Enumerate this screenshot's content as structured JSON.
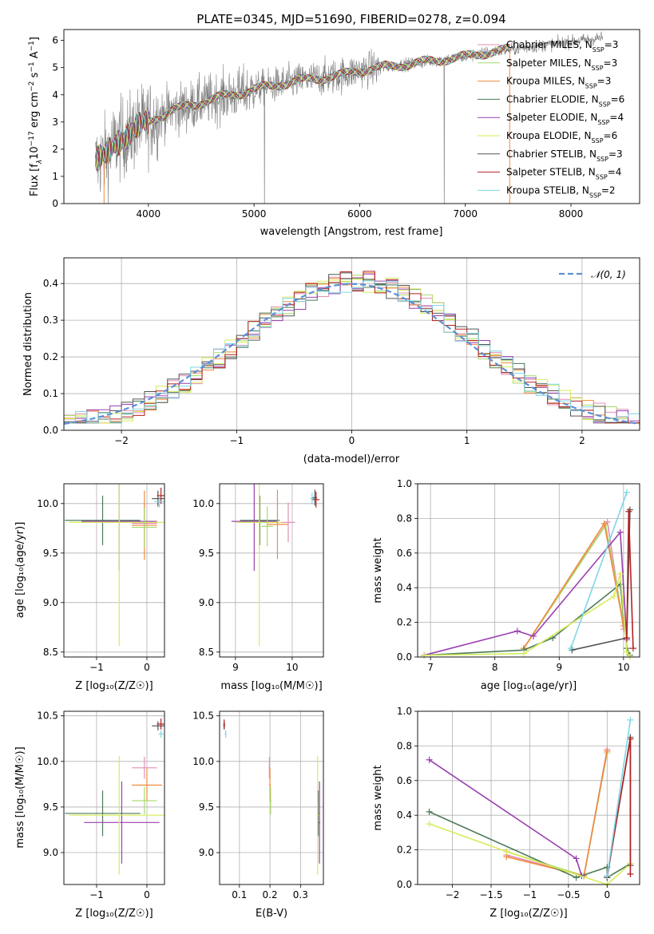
{
  "figure_title": "PLATE=0345, MJD=51690, FIBERID=0278, z=0.094",
  "colors": {
    "chabrier_miles": "#e58fb7",
    "salpeter_miles": "#a6d96a",
    "kroupa_miles": "#f08a3e",
    "chabrier_elodie": "#4d7a5a",
    "salpeter_elodie": "#9a3fb0",
    "kroupa_elodie": "#d7ec5a",
    "chabrier_stelib": "#555555",
    "salpeter_stelib": "#b22222",
    "kroupa_stelib": "#7fd6e6",
    "data": "#808080",
    "normal": "#5b8fd6"
  },
  "chart_data": [
    {
      "id": "spectrum",
      "type": "line",
      "title": "PLATE=0345, MJD=51690, FIBERID=0278, z=0.094",
      "xlabel": "wavelength [Angstrom, rest frame]",
      "ylabel_parts": [
        "Flux [f",
        "λ",
        "10",
        "−17",
        " erg cm",
        "−2",
        " s",
        "−1",
        " A",
        "−1",
        "]"
      ],
      "xlim": [
        3200,
        8650
      ],
      "ylim": [
        0,
        6.4
      ],
      "xticks": [
        4000,
        5000,
        6000,
        7000,
        8000
      ],
      "yticks": [
        0,
        1,
        2,
        3,
        4,
        5,
        6
      ],
      "legend_position": "upper-right",
      "legend": [
        {
          "label": "Chabrier MILES, N",
          "sub": "SSP",
          "n": "=3",
          "key": "chabrier_miles"
        },
        {
          "label": "Salpeter MILES, N",
          "sub": "SSP",
          "n": "=3",
          "key": "salpeter_miles"
        },
        {
          "label": "Kroupa MILES, N",
          "sub": "SSP",
          "n": "=3",
          "key": "kroupa_miles"
        },
        {
          "label": "Chabrier ELODIE, N",
          "sub": "SSP",
          "n": "=6",
          "key": "chabrier_elodie"
        },
        {
          "label": "Salpeter ELODIE, N",
          "sub": "SSP",
          "n": "=4",
          "key": "salpeter_elodie"
        },
        {
          "label": "Kroupa ELODIE, N",
          "sub": "SSP",
          "n": "=6",
          "key": "kroupa_elodie"
        },
        {
          "label": "Chabrier STELIB, N",
          "sub": "SSP",
          "n": "=3",
          "key": "chabrier_stelib"
        },
        {
          "label": "Salpeter STELIB, N",
          "sub": "SSP",
          "n": "=4",
          "key": "salpeter_stelib"
        },
        {
          "label": "Kroupa STELIB, N",
          "sub": "SSP",
          "n": "=2",
          "key": "kroupa_stelib"
        }
      ],
      "continuum": {
        "x": [
          3500,
          3600,
          3700,
          3800,
          3900,
          4000,
          4100,
          4200,
          4400,
          4600,
          4800,
          5000,
          5200,
          5400,
          5600,
          5800,
          6000,
          6200,
          6400,
          6600,
          6800,
          7000,
          7200,
          7400,
          7600,
          7800,
          8000,
          8200,
          8300
        ],
        "y": [
          1.5,
          1.8,
          2.3,
          2.5,
          2.8,
          3.0,
          3.2,
          3.4,
          3.6,
          3.85,
          4.0,
          4.2,
          4.35,
          4.5,
          4.6,
          4.7,
          4.9,
          5.0,
          5.1,
          5.2,
          5.3,
          5.4,
          5.55,
          5.65,
          5.75,
          5.85,
          5.95,
          6.05,
          6.1
        ]
      },
      "data_range": [
        3500,
        8300
      ],
      "model_range": [
        3500,
        7420
      ]
    },
    {
      "id": "residuals",
      "type": "histogram",
      "xlabel": "(data-model)/error",
      "ylabel": "Normed distribution",
      "xlim": [
        -2.5,
        2.5
      ],
      "ylim": [
        0,
        0.47
      ],
      "xticks": [
        -2,
        -1,
        0,
        1,
        2
      ],
      "yticks": [
        0.0,
        0.1,
        0.2,
        0.3,
        0.4
      ],
      "bin_width": 0.1,
      "bin_start": -2.5,
      "legend": "𝒩(0, 1)",
      "legend_position": "upper-right"
    },
    {
      "id": "age_vs_z",
      "type": "errorbar",
      "xlabel": "Z [log",
      "xlabel_full": "Z [log₁₀(Z/Z☉)]",
      "ylabel": "age  [log₁₀(age/yr)]",
      "xlim": [
        -1.65,
        0.35
      ],
      "ylim": [
        8.45,
        10.2
      ],
      "xticks": [
        -1,
        0
      ],
      "yticks": [
        8.5,
        9.0,
        9.5,
        10.0
      ],
      "points": [
        {
          "key": "chabrier_elodie",
          "x": -0.88,
          "xerr": 0.75,
          "y": 9.83,
          "yerr": 0.25
        },
        {
          "key": "salpeter_elodie",
          "x": -0.55,
          "xerr": 0.75,
          "y": 9.82,
          "yerr": 0.5
        },
        {
          "key": "kroupa_elodie",
          "x": -0.55,
          "xerr": 1.0,
          "y": 9.81,
          "yerr": 1.25
        },
        {
          "key": "chabrier_miles",
          "x": -0.05,
          "xerr": 0.25,
          "y": 9.8,
          "yerr": 0.2
        },
        {
          "key": "kroupa_miles",
          "x": -0.05,
          "xerr": 0.25,
          "y": 9.78,
          "yerr": 0.35
        },
        {
          "key": "salpeter_miles",
          "x": -0.05,
          "xerr": 0.25,
          "y": 9.76,
          "yerr": 0.2
        },
        {
          "key": "chabrier_stelib",
          "x": 0.22,
          "xerr": 0.12,
          "y": 10.05,
          "yerr": 0.08
        },
        {
          "key": "salpeter_stelib",
          "x": 0.28,
          "xerr": 0.08,
          "y": 10.08,
          "yerr": 0.08
        },
        {
          "key": "kroupa_stelib",
          "x": 0.25,
          "xerr": 0.1,
          "y": 10.02,
          "yerr": 0.06
        }
      ]
    },
    {
      "id": "age_vs_mass",
      "type": "errorbar",
      "xlabel_full": "mass [log₁₀(M/M☉)]",
      "xlim": [
        8.72,
        10.55
      ],
      "ylim": [
        8.45,
        10.2
      ],
      "xticks": [
        9,
        10
      ],
      "yticks": [
        8.5,
        9.0,
        9.5,
        10.0
      ],
      "points": [
        {
          "key": "chabrier_elodie",
          "x": 9.43,
          "xerr": 0.35,
          "y": 9.83,
          "yerr": 0.25
        },
        {
          "key": "salpeter_elodie",
          "x": 9.33,
          "xerr": 0.4,
          "y": 9.82,
          "yerr": 0.5
        },
        {
          "key": "kroupa_elodie",
          "x": 9.42,
          "xerr": 0.4,
          "y": 9.81,
          "yerr": 1.25
        },
        {
          "key": "chabrier_miles",
          "x": 9.93,
          "xerr": 0.12,
          "y": 9.81,
          "yerr": 0.2
        },
        {
          "key": "kroupa_miles",
          "x": 9.74,
          "xerr": 0.18,
          "y": 9.79,
          "yerr": 0.35
        },
        {
          "key": "salpeter_miles",
          "x": 9.56,
          "xerr": 0.1,
          "y": 9.77,
          "yerr": 0.2
        },
        {
          "key": "chabrier_stelib",
          "x": 10.4,
          "xerr": 0.04,
          "y": 10.06,
          "yerr": 0.08
        },
        {
          "key": "salpeter_stelib",
          "x": 10.42,
          "xerr": 0.06,
          "y": 10.04,
          "yerr": 0.08
        },
        {
          "key": "kroupa_stelib",
          "x": 10.35,
          "xerr": 0.04,
          "y": 10.05,
          "yerr": 0.06
        }
      ]
    },
    {
      "id": "weight_vs_age",
      "type": "line",
      "xlabel_full": "age  [log₁₀(age/yr)]",
      "ylabel": "mass weight",
      "xlim": [
        6.8,
        10.25
      ],
      "ylim": [
        0,
        1.0
      ],
      "xticks": [
        7,
        8,
        9,
        10
      ],
      "yticks": [
        0.0,
        0.2,
        0.4,
        0.6,
        0.8,
        1.0
      ],
      "series": [
        {
          "key": "chabrier_miles",
          "x": [
            8.45,
            9.75,
            10.0
          ],
          "y": [
            0.05,
            0.78,
            0.16
          ]
        },
        {
          "key": "salpeter_miles",
          "x": [
            8.45,
            9.72,
            10.0
          ],
          "y": [
            0.05,
            0.76,
            0.2
          ]
        },
        {
          "key": "kroupa_miles",
          "x": [
            8.45,
            9.7,
            10.0
          ],
          "y": [
            0.05,
            0.77,
            0.18
          ]
        },
        {
          "key": "chabrier_elodie",
          "x": [
            6.9,
            8.45,
            8.9,
            9.95,
            10.05,
            10.1
          ],
          "y": [
            0.01,
            0.04,
            0.11,
            0.42,
            0.05,
            0.01
          ]
        },
        {
          "key": "salpeter_elodie",
          "x": [
            6.9,
            8.35,
            8.6,
            9.95,
            10.05
          ],
          "y": [
            0.01,
            0.15,
            0.12,
            0.72,
            0.1
          ]
        },
        {
          "key": "kroupa_elodie",
          "x": [
            6.9,
            8.45,
            9.85,
            9.95,
            10.05,
            10.1
          ],
          "y": [
            0.01,
            0.02,
            0.35,
            0.48,
            0.03,
            0.0
          ]
        },
        {
          "key": "chabrier_stelib",
          "x": [
            9.2,
            10.05,
            10.1
          ],
          "y": [
            0.04,
            0.11,
            0.85
          ]
        },
        {
          "key": "salpeter_stelib",
          "x": [
            10.05,
            10.08,
            10.15
          ],
          "y": [
            0.11,
            0.84,
            0.05
          ]
        },
        {
          "key": "kroupa_stelib",
          "x": [
            9.18,
            10.05
          ],
          "y": [
            0.05,
            0.95
          ]
        }
      ]
    },
    {
      "id": "mass_vs_z",
      "type": "errorbar",
      "xlabel_full": "Z [log₁₀(Z/Z☉)]",
      "ylabel": "mass [log₁₀(M/M☉)]",
      "xlim": [
        -1.65,
        0.35
      ],
      "ylim": [
        8.65,
        10.55
      ],
      "xticks": [
        -1,
        0
      ],
      "yticks": [
        9.0,
        9.5,
        10.0,
        10.5
      ],
      "points": [
        {
          "key": "chabrier_elodie",
          "x": -0.88,
          "xerr": 0.75,
          "y": 9.43,
          "yerr": 0.25
        },
        {
          "key": "salpeter_elodie",
          "x": -0.5,
          "xerr": 0.75,
          "y": 9.33,
          "yerr": 0.45
        },
        {
          "key": "kroupa_elodie",
          "x": -0.55,
          "xerr": 1.0,
          "y": 9.41,
          "yerr": 0.65
        },
        {
          "key": "chabrier_miles",
          "x": -0.05,
          "xerr": 0.25,
          "y": 9.93,
          "yerr": 0.12
        },
        {
          "key": "kroupa_miles",
          "x": 0.0,
          "xerr": 0.3,
          "y": 9.74,
          "yerr": 0.18
        },
        {
          "key": "salpeter_miles",
          "x": -0.05,
          "xerr": 0.25,
          "y": 9.57,
          "yerr": 0.15
        },
        {
          "key": "chabrier_stelib",
          "x": 0.22,
          "xerr": 0.12,
          "y": 10.39,
          "yerr": 0.05
        },
        {
          "key": "salpeter_stelib",
          "x": 0.28,
          "xerr": 0.08,
          "y": 10.41,
          "yerr": 0.06
        },
        {
          "key": "kroupa_stelib",
          "x": 0.28,
          "xerr": 0.05,
          "y": 10.3,
          "yerr": 0.04
        }
      ]
    },
    {
      "id": "mass_vs_ebv",
      "type": "errorbar",
      "xlabel_full": "E(B-V)",
      "xlim": [
        0.035,
        0.375
      ],
      "ylim": [
        8.65,
        10.55
      ],
      "xticks": [
        0.1,
        0.2,
        0.3
      ],
      "yticks": [
        9.0,
        9.5,
        10.0,
        10.5
      ],
      "points": [
        {
          "key": "chabrier_stelib",
          "x": 0.05,
          "xerr": 0.003,
          "y": 10.39,
          "yerr": 0.04
        },
        {
          "key": "salpeter_stelib",
          "x": 0.05,
          "xerr": 0.003,
          "y": 10.41,
          "yerr": 0.05
        },
        {
          "key": "kroupa_stelib",
          "x": 0.055,
          "xerr": 0.003,
          "y": 10.3,
          "yerr": 0.04
        },
        {
          "key": "chabrier_miles",
          "x": 0.198,
          "xerr": 0.003,
          "y": 9.93,
          "yerr": 0.12
        },
        {
          "key": "kroupa_miles",
          "x": 0.2,
          "xerr": 0.003,
          "y": 9.74,
          "yerr": 0.18
        },
        {
          "key": "salpeter_miles",
          "x": 0.202,
          "xerr": 0.003,
          "y": 9.57,
          "yerr": 0.15
        },
        {
          "key": "chabrier_elodie",
          "x": 0.358,
          "xerr": 0.003,
          "y": 9.43,
          "yerr": 0.25
        },
        {
          "key": "salpeter_elodie",
          "x": 0.362,
          "xerr": 0.003,
          "y": 9.33,
          "yerr": 0.45
        },
        {
          "key": "kroupa_elodie",
          "x": 0.356,
          "xerr": 0.003,
          "y": 9.41,
          "yerr": 0.65
        }
      ]
    },
    {
      "id": "weight_vs_z",
      "type": "line",
      "xlabel_full": "Z [log₁₀(Z/Z☉)]",
      "ylabel": "mass weight",
      "xlim": [
        -2.45,
        0.42
      ],
      "ylim": [
        0,
        1.0
      ],
      "xticks": [
        -2.0,
        -1.5,
        -1.0,
        -0.5,
        0.0
      ],
      "yticks": [
        0.0,
        0.2,
        0.4,
        0.6,
        0.8,
        1.0
      ],
      "series": [
        {
          "key": "chabrier_miles",
          "x": [
            -1.3,
            -0.3,
            0.0
          ],
          "y": [
            0.17,
            0.05,
            0.78
          ]
        },
        {
          "key": "salpeter_miles",
          "x": [
            -1.3,
            -0.3,
            0.0
          ],
          "y": [
            0.19,
            0.05,
            0.76
          ]
        },
        {
          "key": "kroupa_miles",
          "x": [
            -1.3,
            -0.3,
            0.0
          ],
          "y": [
            0.16,
            0.05,
            0.77
          ]
        },
        {
          "key": "chabrier_elodie",
          "x": [
            -2.3,
            -0.4,
            0.0,
            0.0,
            0.3
          ],
          "y": [
            0.42,
            0.04,
            0.1,
            0.04,
            0.12
          ]
        },
        {
          "key": "salpeter_elodie",
          "x": [
            -2.3,
            -0.4,
            -0.33
          ],
          "y": [
            0.72,
            0.15,
            0.05
          ]
        },
        {
          "key": "kroupa_elodie",
          "x": [
            -2.3,
            -1.3,
            0.0,
            0.3
          ],
          "y": [
            0.35,
            0.19,
            0.0,
            0.12
          ]
        },
        {
          "key": "chabrier_stelib",
          "x": [
            0.0,
            0.3,
            0.3
          ],
          "y": [
            0.04,
            0.85,
            0.11
          ]
        },
        {
          "key": "salpeter_stelib",
          "x": [
            0.0,
            0.3,
            0.3
          ],
          "y": [
            0.05,
            0.84,
            0.06
          ]
        },
        {
          "key": "kroupa_stelib",
          "x": [
            0.0,
            0.3
          ],
          "y": [
            0.05,
            0.95
          ]
        }
      ]
    }
  ]
}
